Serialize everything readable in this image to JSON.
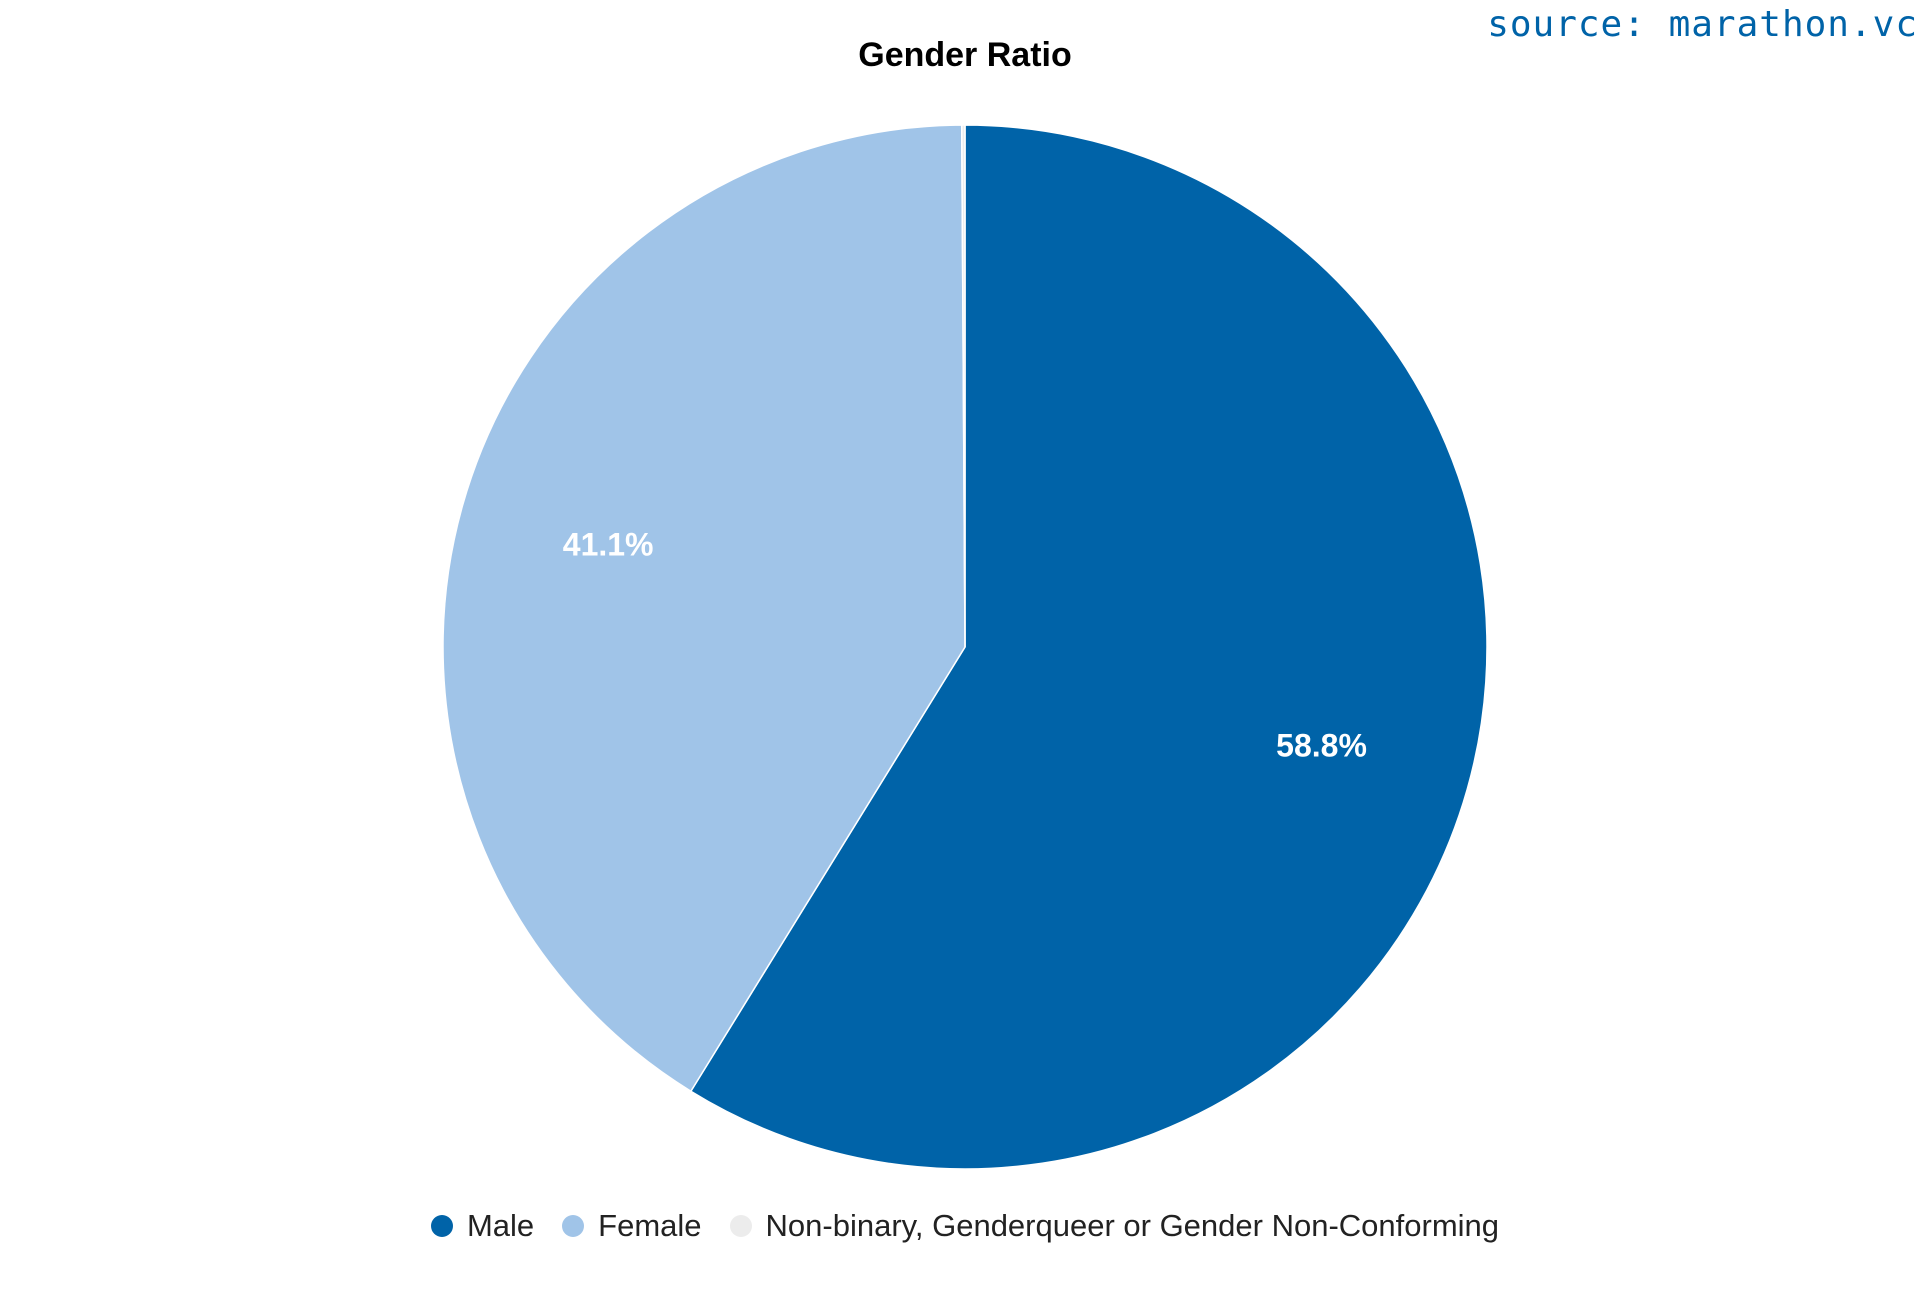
{
  "source_label": "source: marathon.vc",
  "chart_data": {
    "type": "pie",
    "title": "Gender Ratio",
    "slices": [
      {
        "label": "Male",
        "value": 58.8,
        "value_label": "58.8%",
        "color": "#0063a8"
      },
      {
        "label": "Female",
        "value": 41.1,
        "value_label": "41.1%",
        "color": "#a0c4e8"
      },
      {
        "label": "Non-binary, Genderqueer or Gender Non-Conforming",
        "value": 0.1,
        "value_label": "",
        "color": "#ececec"
      }
    ],
    "legend_position": "bottom"
  }
}
